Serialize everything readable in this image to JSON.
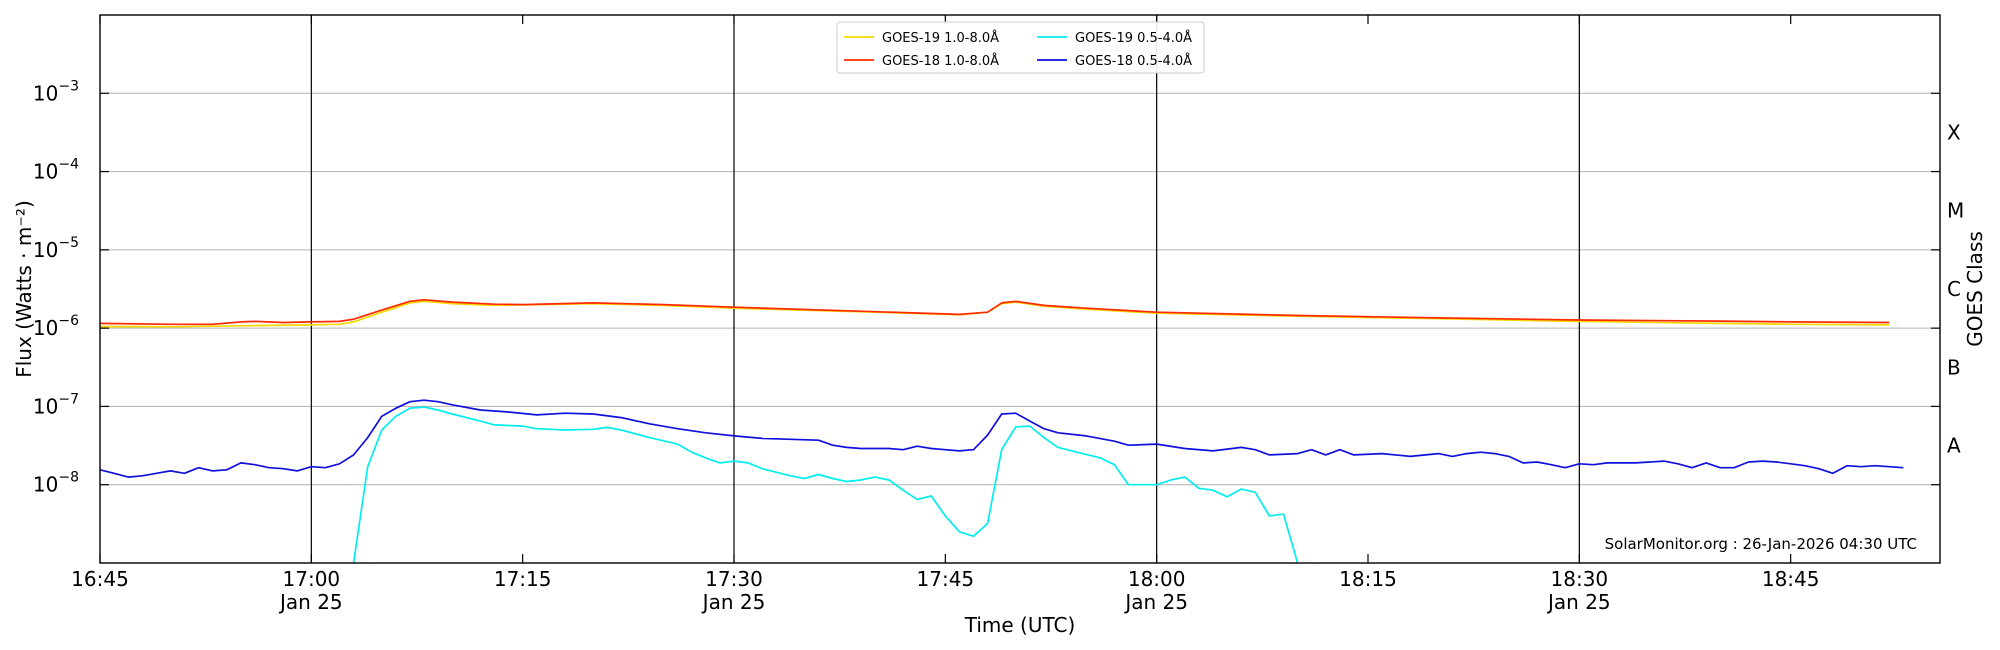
{
  "chart_data": {
    "type": "line",
    "title": "",
    "xlabel": "Time (UTC)",
    "ylabel": "Flux (Watts · m⁻²)",
    "ylabel_right": "GOES Class",
    "x_range": [
      "16:45",
      "18:53"
    ],
    "ylim": [
      1e-09,
      0.01
    ],
    "yscale": "log",
    "y_ticks": [
      {
        "value": 1e-08,
        "base": "10",
        "exp": "−8"
      },
      {
        "value": 1e-07,
        "base": "10",
        "exp": "−7"
      },
      {
        "value": 1e-06,
        "base": "10",
        "exp": "−6"
      },
      {
        "value": 1e-05,
        "base": "10",
        "exp": "−5"
      },
      {
        "value": 0.0001,
        "base": "10",
        "exp": "−4"
      },
      {
        "value": 0.001,
        "base": "10",
        "exp": "−3"
      }
    ],
    "x_ticks": [
      {
        "time": "16:45",
        "label": "16:45",
        "sub": ""
      },
      {
        "time": "17:00",
        "label": "17:00",
        "sub": "Jan 25"
      },
      {
        "time": "17:15",
        "label": "17:15",
        "sub": ""
      },
      {
        "time": "17:30",
        "label": "17:30",
        "sub": "Jan 25"
      },
      {
        "time": "17:45",
        "label": "17:45",
        "sub": ""
      },
      {
        "time": "18:00",
        "label": "18:00",
        "sub": "Jan 25"
      },
      {
        "time": "18:15",
        "label": "18:15",
        "sub": ""
      },
      {
        "time": "18:30",
        "label": "18:30",
        "sub": "Jan 25"
      },
      {
        "time": "18:45",
        "label": "18:45",
        "sub": ""
      }
    ],
    "day_lines": [
      "17:00",
      "17:30",
      "18:00",
      "18:30"
    ],
    "goes_classes": [
      {
        "label": "A",
        "value": 3.16e-08
      },
      {
        "label": "B",
        "value": 3.16e-07
      },
      {
        "label": "C",
        "value": 3.16e-06
      },
      {
        "label": "M",
        "value": 3.16e-05
      },
      {
        "label": "X",
        "value": 0.000316
      }
    ],
    "grid": "horizontal",
    "legend_position": "top-center",
    "credit": "SolarMonitor.org : 26-Jan-2026 04:30 UTC",
    "series": [
      {
        "name": "GOES-19 1.0-8.0Å",
        "color": "#f5d800",
        "points": [
          [
            "16:45",
            1.05e-06
          ],
          [
            "16:50",
            1.04e-06
          ],
          [
            "16:55",
            1.07e-06
          ],
          [
            "17:00",
            1.1e-06
          ],
          [
            "17:02",
            1.12e-06
          ],
          [
            "17:03",
            1.2e-06
          ],
          [
            "17:05",
            1.6e-06
          ],
          [
            "17:07",
            2.1e-06
          ],
          [
            "17:08",
            2.2e-06
          ],
          [
            "17:10",
            2.05e-06
          ],
          [
            "17:13",
            1.95e-06
          ],
          [
            "17:20",
            2.05e-06
          ],
          [
            "17:25",
            1.95e-06
          ],
          [
            "17:30",
            1.8e-06
          ],
          [
            "17:40",
            1.6e-06
          ],
          [
            "17:46",
            1.48e-06
          ],
          [
            "17:48",
            1.6e-06
          ],
          [
            "17:49",
            2.05e-06
          ],
          [
            "17:50",
            2.15e-06
          ],
          [
            "17:52",
            1.9e-06
          ],
          [
            "17:55",
            1.75e-06
          ],
          [
            "18:00",
            1.55e-06
          ],
          [
            "18:10",
            1.42e-06
          ],
          [
            "18:20",
            1.32e-06
          ],
          [
            "18:30",
            1.22e-06
          ],
          [
            "18:40",
            1.15e-06
          ],
          [
            "18:45",
            1.12e-06
          ],
          [
            "18:52",
            1.1e-06
          ]
        ]
      },
      {
        "name": "GOES-18 1.0-8.0Å",
        "color": "#ff2a00",
        "points": [
          [
            "16:45",
            1.15e-06
          ],
          [
            "16:50",
            1.12e-06
          ],
          [
            "16:53",
            1.12e-06
          ],
          [
            "16:55",
            1.2e-06
          ],
          [
            "16:56",
            1.22e-06
          ],
          [
            "16:58",
            1.18e-06
          ],
          [
            "17:00",
            1.2e-06
          ],
          [
            "17:02",
            1.22e-06
          ],
          [
            "17:03",
            1.3e-06
          ],
          [
            "17:05",
            1.7e-06
          ],
          [
            "17:07",
            2.2e-06
          ],
          [
            "17:08",
            2.3e-06
          ],
          [
            "17:10",
            2.15e-06
          ],
          [
            "17:13",
            2.02e-06
          ],
          [
            "17:15",
            2e-06
          ],
          [
            "17:20",
            2.1e-06
          ],
          [
            "17:25",
            2e-06
          ],
          [
            "17:30",
            1.85e-06
          ],
          [
            "17:40",
            1.62e-06
          ],
          [
            "17:46",
            1.5e-06
          ],
          [
            "17:48",
            1.6e-06
          ],
          [
            "17:49",
            2.1e-06
          ],
          [
            "17:50",
            2.2e-06
          ],
          [
            "17:52",
            1.95e-06
          ],
          [
            "17:55",
            1.8e-06
          ],
          [
            "18:00",
            1.6e-06
          ],
          [
            "18:10",
            1.45e-06
          ],
          [
            "18:20",
            1.35e-06
          ],
          [
            "18:30",
            1.27e-06
          ],
          [
            "18:40",
            1.23e-06
          ],
          [
            "18:45",
            1.2e-06
          ],
          [
            "18:52",
            1.18e-06
          ]
        ]
      },
      {
        "name": "GOES-19 0.5-4.0Å",
        "color": "#00eeee",
        "points": [
          [
            "17:03",
            1e-09
          ],
          [
            "17:04",
            1.7e-08
          ],
          [
            "17:05",
            5e-08
          ],
          [
            "17:06",
            7.5e-08
          ],
          [
            "17:07",
            9.5e-08
          ],
          [
            "17:08",
            9.8e-08
          ],
          [
            "17:09",
            9e-08
          ],
          [
            "17:10",
            8e-08
          ],
          [
            "17:12",
            6.5e-08
          ],
          [
            "17:13",
            5.8e-08
          ],
          [
            "17:15",
            5.6e-08
          ],
          [
            "17:16",
            5.2e-08
          ],
          [
            "17:18",
            5e-08
          ],
          [
            "17:20",
            5.1e-08
          ],
          [
            "17:21",
            5.4e-08
          ],
          [
            "17:22",
            5e-08
          ],
          [
            "17:24",
            4e-08
          ],
          [
            "17:26",
            3.3e-08
          ],
          [
            "17:27",
            2.6e-08
          ],
          [
            "17:28",
            2.2e-08
          ],
          [
            "17:29",
            1.9e-08
          ],
          [
            "17:30",
            2e-08
          ],
          [
            "17:31",
            1.9e-08
          ],
          [
            "17:32",
            1.6e-08
          ],
          [
            "17:34",
            1.3e-08
          ],
          [
            "17:35",
            1.2e-08
          ],
          [
            "17:36",
            1.35e-08
          ],
          [
            "17:37",
            1.2e-08
          ],
          [
            "17:38",
            1.1e-08
          ],
          [
            "17:39",
            1.15e-08
          ],
          [
            "17:40",
            1.25e-08
          ],
          [
            "17:41",
            1.15e-08
          ],
          [
            "17:42",
            8.5e-09
          ],
          [
            "17:43",
            6.5e-09
          ],
          [
            "17:44",
            7.2e-09
          ],
          [
            "17:45",
            4e-09
          ],
          [
            "17:46",
            2.5e-09
          ],
          [
            "17:47",
            2.2e-09
          ],
          [
            "17:48",
            3.2e-09
          ],
          [
            "17:49",
            2.8e-08
          ],
          [
            "17:50",
            5.5e-08
          ],
          [
            "17:51",
            5.6e-08
          ],
          [
            "17:52",
            4e-08
          ],
          [
            "17:53",
            3e-08
          ],
          [
            "17:54",
            2.7e-08
          ],
          [
            "17:56",
            2.2e-08
          ],
          [
            "17:57",
            1.8e-08
          ],
          [
            "17:58",
            1e-08
          ],
          [
            "18:00",
            1e-08
          ],
          [
            "18:01",
            1.15e-08
          ],
          [
            "18:02",
            1.25e-08
          ],
          [
            "18:03",
            9e-09
          ],
          [
            "18:04",
            8.5e-09
          ],
          [
            "18:05",
            7e-09
          ],
          [
            "18:06",
            8.8e-09
          ],
          [
            "18:07",
            8e-09
          ],
          [
            "18:08",
            4e-09
          ],
          [
            "18:09",
            4.2e-09
          ],
          [
            "18:10",
            1e-09
          ]
        ]
      },
      {
        "name": "GOES-18 0.5-4.0Å",
        "color": "#1010dd",
        "points": [
          [
            "16:45",
            1.55e-08
          ],
          [
            "16:46",
            1.4e-08
          ],
          [
            "16:47",
            1.25e-08
          ],
          [
            "16:48",
            1.3e-08
          ],
          [
            "16:49",
            1.4e-08
          ],
          [
            "16:50",
            1.5e-08
          ],
          [
            "16:51",
            1.4e-08
          ],
          [
            "16:52",
            1.65e-08
          ],
          [
            "16:53",
            1.5e-08
          ],
          [
            "16:54",
            1.55e-08
          ],
          [
            "16:55",
            1.9e-08
          ],
          [
            "16:56",
            1.8e-08
          ],
          [
            "16:57",
            1.65e-08
          ],
          [
            "16:58",
            1.6e-08
          ],
          [
            "16:59",
            1.5e-08
          ],
          [
            "17:00",
            1.7e-08
          ],
          [
            "17:01",
            1.65e-08
          ],
          [
            "17:02",
            1.85e-08
          ],
          [
            "17:03",
            2.4e-08
          ],
          [
            "17:04",
            4e-08
          ],
          [
            "17:05",
            7.5e-08
          ],
          [
            "17:06",
            9.5e-08
          ],
          [
            "17:07",
            1.15e-07
          ],
          [
            "17:08",
            1.2e-07
          ],
          [
            "17:09",
            1.15e-07
          ],
          [
            "17:10",
            1.05e-07
          ],
          [
            "17:12",
            9e-08
          ],
          [
            "17:14",
            8.5e-08
          ],
          [
            "17:16",
            7.8e-08
          ],
          [
            "17:18",
            8.2e-08
          ],
          [
            "17:20",
            8e-08
          ],
          [
            "17:22",
            7.2e-08
          ],
          [
            "17:24",
            6e-08
          ],
          [
            "17:26",
            5.2e-08
          ],
          [
            "17:28",
            4.6e-08
          ],
          [
            "17:30",
            4.2e-08
          ],
          [
            "17:32",
            3.9e-08
          ],
          [
            "17:34",
            3.8e-08
          ],
          [
            "17:36",
            3.7e-08
          ],
          [
            "17:37",
            3.2e-08
          ],
          [
            "17:38",
            3e-08
          ],
          [
            "17:39",
            2.9e-08
          ],
          [
            "17:41",
            2.9e-08
          ],
          [
            "17:42",
            2.8e-08
          ],
          [
            "17:43",
            3.1e-08
          ],
          [
            "17:44",
            2.9e-08
          ],
          [
            "17:45",
            2.8e-08
          ],
          [
            "17:46",
            2.7e-08
          ],
          [
            "17:47",
            2.8e-08
          ],
          [
            "17:48",
            4.3e-08
          ],
          [
            "17:49",
            8e-08
          ],
          [
            "17:50",
            8.2e-08
          ],
          [
            "17:51",
            6.5e-08
          ],
          [
            "17:52",
            5.2e-08
          ],
          [
            "17:53",
            4.6e-08
          ],
          [
            "17:55",
            4.2e-08
          ],
          [
            "17:57",
            3.6e-08
          ],
          [
            "17:58",
            3.2e-08
          ],
          [
            "18:00",
            3.3e-08
          ],
          [
            "18:02",
            2.9e-08
          ],
          [
            "18:04",
            2.7e-08
          ],
          [
            "18:06",
            3e-08
          ],
          [
            "18:07",
            2.8e-08
          ],
          [
            "18:08",
            2.4e-08
          ],
          [
            "18:10",
            2.5e-08
          ],
          [
            "18:11",
            2.8e-08
          ],
          [
            "18:12",
            2.4e-08
          ],
          [
            "18:13",
            2.8e-08
          ],
          [
            "18:14",
            2.4e-08
          ],
          [
            "18:16",
            2.5e-08
          ],
          [
            "18:18",
            2.3e-08
          ],
          [
            "18:20",
            2.5e-08
          ],
          [
            "18:21",
            2.3e-08
          ],
          [
            "18:22",
            2.5e-08
          ],
          [
            "18:23",
            2.6e-08
          ],
          [
            "18:24",
            2.5e-08
          ],
          [
            "18:25",
            2.3e-08
          ],
          [
            "18:26",
            1.9e-08
          ],
          [
            "18:27",
            1.95e-08
          ],
          [
            "18:28",
            1.8e-08
          ],
          [
            "18:29",
            1.65e-08
          ],
          [
            "18:30",
            1.85e-08
          ],
          [
            "18:31",
            1.8e-08
          ],
          [
            "18:32",
            1.9e-08
          ],
          [
            "18:34",
            1.9e-08
          ],
          [
            "18:36",
            2e-08
          ],
          [
            "18:37",
            1.85e-08
          ],
          [
            "18:38",
            1.65e-08
          ],
          [
            "18:39",
            1.9e-08
          ],
          [
            "18:40",
            1.65e-08
          ],
          [
            "18:41",
            1.65e-08
          ],
          [
            "18:42",
            1.95e-08
          ],
          [
            "18:43",
            2e-08
          ],
          [
            "18:44",
            1.95e-08
          ],
          [
            "18:45",
            1.85e-08
          ],
          [
            "18:46",
            1.75e-08
          ],
          [
            "18:47",
            1.6e-08
          ],
          [
            "18:48",
            1.4e-08
          ],
          [
            "18:49",
            1.75e-08
          ],
          [
            "18:50",
            1.7e-08
          ],
          [
            "18:51",
            1.75e-08
          ],
          [
            "18:52",
            1.7e-08
          ],
          [
            "18:53",
            1.65e-08
          ]
        ]
      }
    ]
  }
}
